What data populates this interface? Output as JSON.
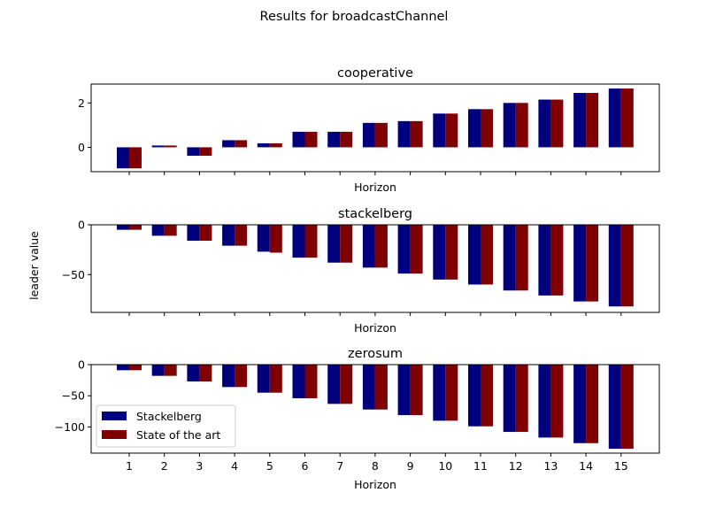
{
  "figure": {
    "suptitle": "Results for broadcastChannel",
    "shared_ylabel": "leader value",
    "colors": {
      "stackelberg": "#00007f",
      "state_of_the_art": "#7f0000"
    }
  },
  "chart_data": [
    {
      "type": "bar",
      "title": "cooperative",
      "xlabel": "Horizon",
      "categories": [
        1,
        2,
        3,
        4,
        5,
        6,
        7,
        8,
        9,
        10,
        11,
        12,
        13,
        14,
        15
      ],
      "xtick_labels_visible": false,
      "ylim": [
        -1.1,
        2.85
      ],
      "yticks": [
        0,
        2
      ],
      "series": [
        {
          "name": "Stackelberg",
          "values": [
            -0.95,
            0.08,
            -0.38,
            0.32,
            0.18,
            0.7,
            0.7,
            1.1,
            1.18,
            1.52,
            1.72,
            2.0,
            2.15,
            2.45,
            2.65
          ]
        },
        {
          "name": "State of the art",
          "values": [
            -0.95,
            0.08,
            -0.38,
            0.32,
            0.18,
            0.7,
            0.7,
            1.1,
            1.18,
            1.52,
            1.72,
            2.0,
            2.15,
            2.45,
            2.65
          ]
        }
      ]
    },
    {
      "type": "bar",
      "title": "stackelberg",
      "xlabel": "Horizon",
      "categories": [
        1,
        2,
        3,
        4,
        5,
        6,
        7,
        8,
        9,
        10,
        11,
        12,
        13,
        14,
        15
      ],
      "xtick_labels_visible": false,
      "ylim": [
        -88,
        0
      ],
      "yticks": [
        0,
        -50
      ],
      "series": [
        {
          "name": "Stackelberg",
          "values": [
            -5,
            -11,
            -16,
            -21,
            -27,
            -33,
            -38,
            -43,
            -49,
            -55,
            -60,
            -66,
            -71,
            -77,
            -82
          ]
        },
        {
          "name": "State of the art",
          "values": [
            -5,
            -11,
            -16,
            -21,
            -28,
            -33,
            -38,
            -43,
            -49,
            -55,
            -60,
            -66,
            -71,
            -77,
            -82
          ]
        }
      ]
    },
    {
      "type": "bar",
      "title": "zerosum",
      "xlabel": "Horizon",
      "categories": [
        1,
        2,
        3,
        4,
        5,
        6,
        7,
        8,
        9,
        10,
        11,
        12,
        13,
        14,
        15
      ],
      "xtick_labels_visible": true,
      "ylim": [
        -142,
        0
      ],
      "yticks": [
        0,
        -50,
        -100
      ],
      "legend": "lower-left",
      "series": [
        {
          "name": "Stackelberg",
          "values": [
            -9,
            -18,
            -27,
            -36,
            -45,
            -54,
            -63,
            -72,
            -81,
            -90,
            -99,
            -108,
            -117,
            -126,
            -135
          ]
        },
        {
          "name": "State of the art",
          "values": [
            -9,
            -18,
            -27,
            -36,
            -45,
            -54,
            -63,
            -72,
            -81,
            -90,
            -99,
            -108,
            -117,
            -126,
            -135
          ]
        }
      ]
    }
  ]
}
